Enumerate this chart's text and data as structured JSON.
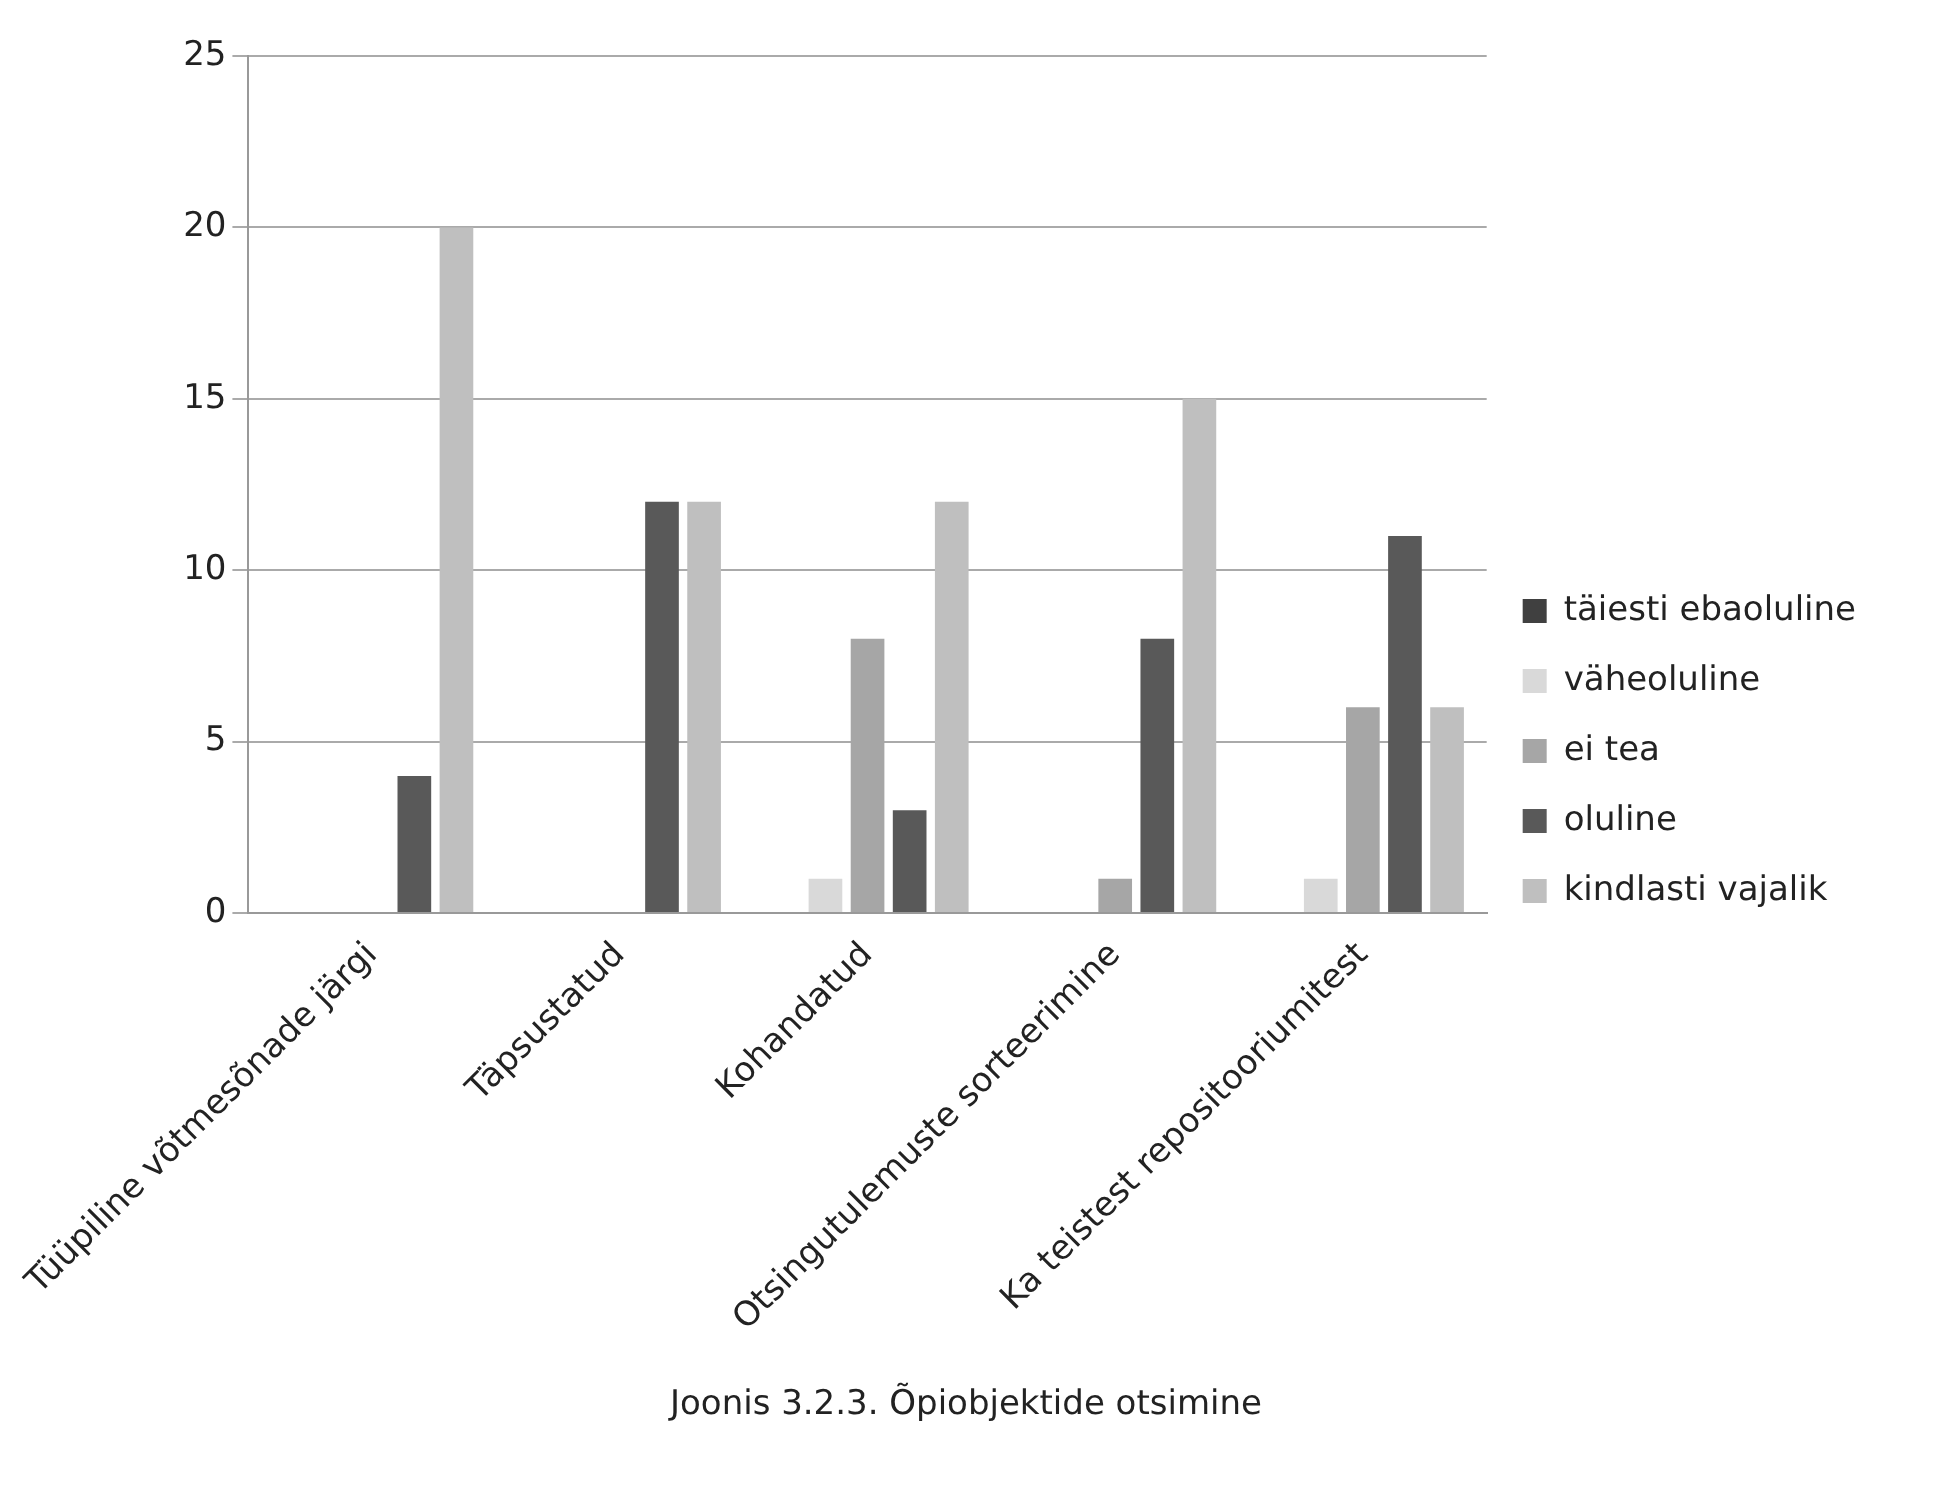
{
  "chart_data": {
    "type": "bar",
    "title": "Joonis 3.2.3. Õpiobjektide otsimine",
    "categories": [
      "Tüüpiline võtmesõnade järgi",
      "Täpsustatud",
      "Kohandatud",
      "Otsingutulemuste sorteerimine",
      "Ka teistest repositooriumitest"
    ],
    "series": [
      {
        "name": "täiesti ebaoluline",
        "color": "#404040",
        "values": [
          0,
          0,
          0,
          0,
          0
        ]
      },
      {
        "name": "väheoluline",
        "color": "#d9d9d9",
        "values": [
          0,
          0,
          1,
          0,
          1
        ]
      },
      {
        "name": "ei tea",
        "color": "#a6a6a6",
        "values": [
          0,
          0,
          8,
          1,
          6
        ]
      },
      {
        "name": "oluline",
        "color": "#595959",
        "values": [
          4,
          12,
          3,
          8,
          11
        ]
      },
      {
        "name": "kindlasti vajalik",
        "color": "#bfbfbf",
        "values": [
          20,
          12,
          12,
          15,
          6
        ]
      }
    ],
    "ylim": [
      0,
      25
    ],
    "yticks": [
      0,
      5,
      10,
      15,
      20,
      25
    ],
    "grid": "y",
    "legend": "right"
  }
}
